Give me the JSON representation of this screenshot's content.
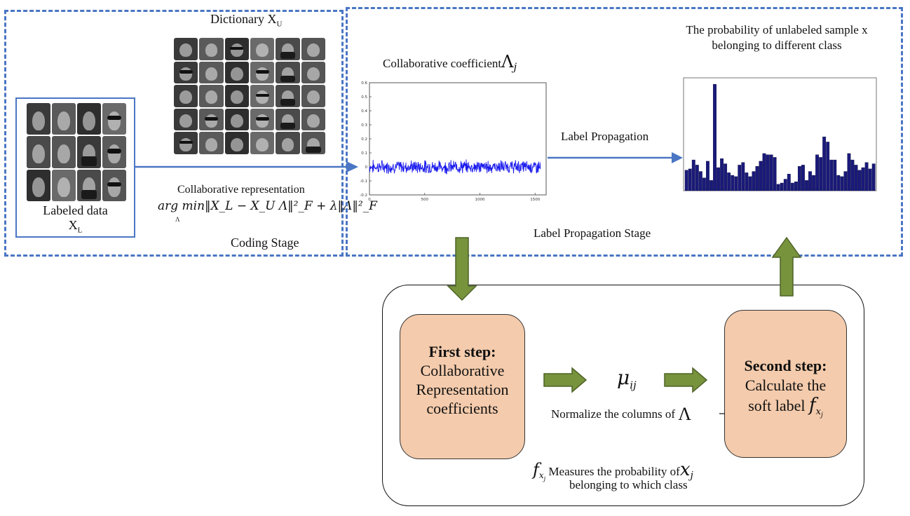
{
  "coding": {
    "dictionary_label": "Dictionary X",
    "dictionary_sub": "U",
    "labeled_label": "Labeled data",
    "labeled_x": "X",
    "labeled_sub": "L",
    "collab_rep_label": "Collaborative representation",
    "formula": "arg min‖X_L − X_U Λ‖²_F + λ‖Λ‖²_F",
    "formula_sub": "Λ",
    "stage_label": "Coding Stage"
  },
  "propagation": {
    "coef_label": "Collaborative coefficient",
    "coef_symbol": "Λ",
    "coef_sub": "j",
    "prob_title": "The probability of unlabeled sample x belonging to different class",
    "arrow_label": "Label Propagation",
    "stage_label": "Label Propagation Stage"
  },
  "process": {
    "first_step_title": "First step:",
    "first_step_body": "Collaborative Representation coefficients",
    "mu_symbol": "μ",
    "mu_sub": "ij",
    "normalize_label": "Normalize the columns of",
    "normalize_symbol": "Λ",
    "second_step_title": "Second step:",
    "second_step_line1": "Calculate the",
    "second_step_line2": "soft label",
    "f_symbol": "f",
    "f_sub": "x",
    "f_subsub": "j",
    "measure_text": "Measures the probability of",
    "x_symbol": "x",
    "x_sub": "j",
    "measure_line2": "belonging to which class"
  },
  "colors": {
    "accent_blue": "#4a76c4",
    "arrow_green": "#77933c",
    "step_fill": "#f4cbac",
    "bar_navy": "#1a1a7a",
    "signal_blue": "#1a1aee"
  },
  "chart_data": [
    {
      "type": "line",
      "title": "",
      "x_ticks": [
        "0",
        "500",
        "1000",
        "1500"
      ],
      "y_ticks": [
        "0.6",
        "0.5",
        "0.4",
        "0.3",
        "0.2",
        "0.1",
        "0",
        "-0.1",
        "-0.2"
      ],
      "xlim": [
        0,
        1600
      ],
      "ylim": [
        -0.2,
        0.6
      ]
    },
    {
      "type": "bar",
      "title": "",
      "values": [
        0.16,
        0.17,
        0.24,
        0.2,
        0.15,
        0.1,
        0.23,
        0.08,
        0.83,
        0.18,
        0.25,
        0.21,
        0.14,
        0.12,
        0.11,
        0.2,
        0.22,
        0.14,
        0.11,
        0.15,
        0.19,
        0.23,
        0.29,
        0.28,
        0.28,
        0.26,
        0.05,
        0.06,
        0.09,
        0.13,
        0.06,
        0.07,
        0.19,
        0.2,
        0.08,
        0.15,
        0.12,
        0.28,
        0.26,
        0.42,
        0.38,
        0.24,
        0.24,
        0.12,
        0.11,
        0.15,
        0.29,
        0.24,
        0.2,
        0.16,
        0.18,
        0.22,
        0.17,
        0.21
      ]
    }
  ]
}
